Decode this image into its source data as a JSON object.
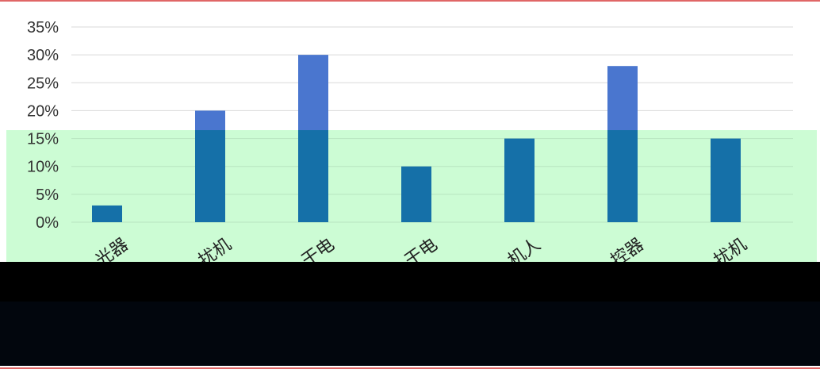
{
  "chart_data": {
    "type": "bar",
    "categories": [
      "光器",
      "扰机",
      "干电",
      "干电",
      "机人",
      "控器",
      "扰机"
    ],
    "series": [
      {
        "values": [
          3,
          20,
          30,
          10,
          15,
          28,
          15
        ]
      }
    ],
    "ylim": [
      0,
      35
    ],
    "yticks": [
      "0%",
      "5%",
      "10%",
      "15%",
      "20%",
      "25%",
      "30%",
      "35%"
    ],
    "grid": true,
    "legend": "none",
    "colors": {
      "bar_upper": "#4a76cf",
      "bar_lower": "#1570a8",
      "overlay": "#ccfcd4",
      "redaction": "#000000",
      "grid": "#d9d9d9"
    }
  }
}
